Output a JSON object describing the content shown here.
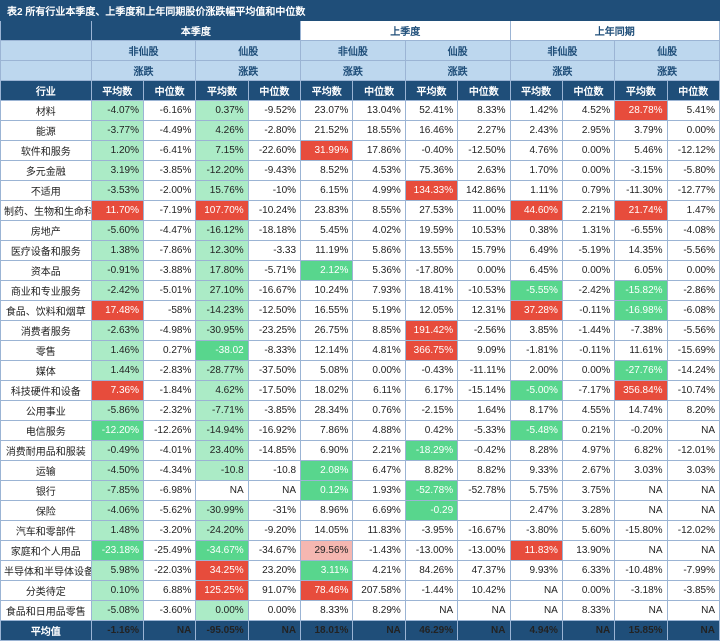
{
  "title": "表2 所有行业本季度、上季度和上年同期股价涨跌幅平均值和中位数",
  "periods": [
    "本季度",
    "上季度",
    "上年同期"
  ],
  "stockTypes": [
    "非仙股",
    "仙股"
  ],
  "metric": "涨跌",
  "colHeaders": [
    "平均数",
    "中位数"
  ],
  "industryHeader": "行业",
  "avgLabel": "平均值",
  "colors": {
    "hi_red": "#e74c3c",
    "hi_red_lt": "#f5b7b1",
    "hi_green": "#58d68d",
    "hi_green_lt": "#abebc6",
    "hi_none": ""
  },
  "rows": [
    {
      "label": "材料",
      "c": [
        [
          "-4.07%",
          "hi_green_lt"
        ],
        [
          "-6.16%",
          ""
        ],
        [
          "0.37%",
          "hi_green_lt"
        ],
        [
          "-9.52%",
          ""
        ],
        [
          "23.07%",
          ""
        ],
        [
          "13.04%",
          ""
        ],
        [
          "52.41%",
          ""
        ],
        [
          "8.33%",
          ""
        ],
        [
          "1.42%",
          ""
        ],
        [
          "4.52%",
          ""
        ],
        [
          "28.78%",
          "hi_red"
        ],
        [
          "5.41%",
          ""
        ]
      ]
    },
    {
      "label": "能源",
      "c": [
        [
          "-3.77%",
          "hi_green_lt"
        ],
        [
          "-4.49%",
          ""
        ],
        [
          "4.26%",
          "hi_green_lt"
        ],
        [
          "-2.80%",
          ""
        ],
        [
          "21.52%",
          ""
        ],
        [
          "18.55%",
          ""
        ],
        [
          "16.46%",
          ""
        ],
        [
          "2.27%",
          ""
        ],
        [
          "2.43%",
          ""
        ],
        [
          "2.95%",
          ""
        ],
        [
          "3.79%",
          ""
        ],
        [
          "0.00%",
          ""
        ]
      ]
    },
    {
      "label": "软件和服务",
      "c": [
        [
          "1.20%",
          "hi_green_lt"
        ],
        [
          "-6.41%",
          ""
        ],
        [
          "7.15%",
          "hi_green_lt"
        ],
        [
          "-22.60%",
          ""
        ],
        [
          "31.99%",
          "hi_red"
        ],
        [
          "17.86%",
          ""
        ],
        [
          "-0.40%",
          ""
        ],
        [
          "-12.50%",
          ""
        ],
        [
          "4.76%",
          ""
        ],
        [
          "0.00%",
          ""
        ],
        [
          "5.46%",
          ""
        ],
        [
          "-12.12%",
          ""
        ]
      ]
    },
    {
      "label": "多元金融",
      "c": [
        [
          "3.19%",
          "hi_green_lt"
        ],
        [
          "-3.85%",
          ""
        ],
        [
          "-12.20%",
          "hi_green_lt"
        ],
        [
          "-9.43%",
          ""
        ],
        [
          "8.52%",
          ""
        ],
        [
          "4.53%",
          ""
        ],
        [
          "75.36%",
          ""
        ],
        [
          "2.63%",
          ""
        ],
        [
          "1.70%",
          ""
        ],
        [
          "0.00%",
          ""
        ],
        [
          "-3.15%",
          ""
        ],
        [
          "-5.80%",
          ""
        ]
      ]
    },
    {
      "label": "不适用",
      "c": [
        [
          "-3.53%",
          "hi_green_lt"
        ],
        [
          "-2.00%",
          ""
        ],
        [
          "15.76%",
          "hi_green_lt"
        ],
        [
          "-10%",
          ""
        ],
        [
          "6.15%",
          ""
        ],
        [
          "4.99%",
          ""
        ],
        [
          "134.33%",
          "hi_red"
        ],
        [
          "142.86%",
          ""
        ],
        [
          "1.11%",
          ""
        ],
        [
          "0.79%",
          ""
        ],
        [
          "-11.30%",
          ""
        ],
        [
          "-12.77%",
          ""
        ]
      ]
    },
    {
      "label": "制药、生物和生命科学",
      "c": [
        [
          "11.70%",
          "hi_red"
        ],
        [
          "-7.19%",
          ""
        ],
        [
          "107.70%",
          "hi_red"
        ],
        [
          "-10.24%",
          ""
        ],
        [
          "23.83%",
          ""
        ],
        [
          "8.55%",
          ""
        ],
        [
          "27.53%",
          ""
        ],
        [
          "11.00%",
          ""
        ],
        [
          "44.60%",
          "hi_red"
        ],
        [
          "2.21%",
          ""
        ],
        [
          "21.74%",
          "hi_red"
        ],
        [
          "1.47%",
          ""
        ]
      ]
    },
    {
      "label": "房地产",
      "c": [
        [
          "-5.60%",
          "hi_green_lt"
        ],
        [
          "-4.47%",
          ""
        ],
        [
          "-16.12%",
          "hi_green_lt"
        ],
        [
          "-18.18%",
          ""
        ],
        [
          "5.45%",
          ""
        ],
        [
          "4.02%",
          ""
        ],
        [
          "19.59%",
          ""
        ],
        [
          "10.53%",
          ""
        ],
        [
          "0.38%",
          ""
        ],
        [
          "1.31%",
          ""
        ],
        [
          "-6.55%",
          ""
        ],
        [
          "-4.08%",
          ""
        ]
      ]
    },
    {
      "label": "医疗设备和服务",
      "c": [
        [
          "1.38%",
          "hi_green_lt"
        ],
        [
          "-7.86%",
          ""
        ],
        [
          "12.30%",
          "hi_green_lt"
        ],
        [
          "-3.33",
          ""
        ],
        [
          "11.19%",
          ""
        ],
        [
          "5.86%",
          ""
        ],
        [
          "13.55%",
          ""
        ],
        [
          "15.79%",
          ""
        ],
        [
          "6.49%",
          ""
        ],
        [
          "-5.19%",
          ""
        ],
        [
          "14.35%",
          ""
        ],
        [
          "-5.56%",
          ""
        ]
      ]
    },
    {
      "label": "资本品",
      "c": [
        [
          "-0.91%",
          "hi_green_lt"
        ],
        [
          "-3.88%",
          ""
        ],
        [
          "17.80%",
          "hi_green_lt"
        ],
        [
          "-5.71%",
          ""
        ],
        [
          "2.12%",
          "hi_green"
        ],
        [
          "5.36%",
          ""
        ],
        [
          "-17.80%",
          ""
        ],
        [
          "0.00%",
          ""
        ],
        [
          "6.45%",
          ""
        ],
        [
          "0.00%",
          ""
        ],
        [
          "6.05%",
          ""
        ],
        [
          "0.00%",
          ""
        ]
      ]
    },
    {
      "label": "商业和专业服务",
      "c": [
        [
          "-2.42%",
          "hi_green_lt"
        ],
        [
          "-5.01%",
          ""
        ],
        [
          "27.10%",
          "hi_green_lt"
        ],
        [
          "-16.67%",
          ""
        ],
        [
          "10.24%",
          ""
        ],
        [
          "7.93%",
          ""
        ],
        [
          "18.41%",
          ""
        ],
        [
          "-10.53%",
          ""
        ],
        [
          "-5.55%",
          "hi_green"
        ],
        [
          "-2.42%",
          ""
        ],
        [
          "-15.82%",
          "hi_green"
        ],
        [
          "-2.86%",
          ""
        ]
      ]
    },
    {
      "label": "食品、饮料和烟草",
      "c": [
        [
          "17.48%",
          "hi_red"
        ],
        [
          "-58%",
          ""
        ],
        [
          "-14.23%",
          "hi_green_lt"
        ],
        [
          "-12.50%",
          ""
        ],
        [
          "16.55%",
          ""
        ],
        [
          "5.19%",
          ""
        ],
        [
          "12.05%",
          ""
        ],
        [
          "12.31%",
          ""
        ],
        [
          "37.28%",
          "hi_red"
        ],
        [
          "-0.11%",
          ""
        ],
        [
          "-16.98%",
          "hi_green"
        ],
        [
          "-6.08%",
          ""
        ]
      ]
    },
    {
      "label": "消费者服务",
      "c": [
        [
          "-2.63%",
          "hi_green_lt"
        ],
        [
          "-4.98%",
          ""
        ],
        [
          "-30.95%",
          "hi_green_lt"
        ],
        [
          "-23.25%",
          ""
        ],
        [
          "26.75%",
          ""
        ],
        [
          "8.85%",
          ""
        ],
        [
          "191.42%",
          "hi_red"
        ],
        [
          "-2.56%",
          ""
        ],
        [
          "3.85%",
          ""
        ],
        [
          "-1.44%",
          ""
        ],
        [
          "-7.38%",
          ""
        ],
        [
          "-5.56%",
          ""
        ]
      ]
    },
    {
      "label": "零售",
      "c": [
        [
          "1.46%",
          "hi_green_lt"
        ],
        [
          "0.27%",
          ""
        ],
        [
          "-38.02",
          "hi_green"
        ],
        [
          "-8.33%",
          ""
        ],
        [
          "12.14%",
          ""
        ],
        [
          "4.81%",
          ""
        ],
        [
          "366.75%",
          "hi_red"
        ],
        [
          "9.09%",
          ""
        ],
        [
          "-1.81%",
          ""
        ],
        [
          "-0.11%",
          ""
        ],
        [
          "11.61%",
          ""
        ],
        [
          "-15.69%",
          ""
        ]
      ]
    },
    {
      "label": "媒体",
      "c": [
        [
          "1.44%",
          "hi_green_lt"
        ],
        [
          "-2.83%",
          ""
        ],
        [
          "-28.77%",
          "hi_green_lt"
        ],
        [
          "-37.50%",
          ""
        ],
        [
          "5.08%",
          ""
        ],
        [
          "0.00%",
          ""
        ],
        [
          "-0.43%",
          ""
        ],
        [
          "-11.11%",
          ""
        ],
        [
          "2.00%",
          ""
        ],
        [
          "0.00%",
          ""
        ],
        [
          "-27.76%",
          "hi_green"
        ],
        [
          "-14.24%",
          ""
        ]
      ]
    },
    {
      "label": "科技硬件和设备",
      "c": [
        [
          "7.36%",
          "hi_red"
        ],
        [
          "-1.84%",
          ""
        ],
        [
          "4.62%",
          "hi_green_lt"
        ],
        [
          "-17.50%",
          ""
        ],
        [
          "18.02%",
          ""
        ],
        [
          "6.11%",
          ""
        ],
        [
          "6.17%",
          ""
        ],
        [
          "-15.14%",
          ""
        ],
        [
          "-5.00%",
          "hi_green"
        ],
        [
          "-7.17%",
          ""
        ],
        [
          "356.84%",
          "hi_red"
        ],
        [
          "-10.74%",
          ""
        ]
      ]
    },
    {
      "label": "公用事业",
      "c": [
        [
          "-5.86%",
          "hi_green_lt"
        ],
        [
          "-2.32%",
          ""
        ],
        [
          "-7.71%",
          "hi_green_lt"
        ],
        [
          "-3.85%",
          ""
        ],
        [
          "28.34%",
          ""
        ],
        [
          "0.76%",
          ""
        ],
        [
          "-2.15%",
          ""
        ],
        [
          "1.64%",
          ""
        ],
        [
          "8.17%",
          ""
        ],
        [
          "4.55%",
          ""
        ],
        [
          "14.74%",
          ""
        ],
        [
          "8.20%",
          ""
        ]
      ]
    },
    {
      "label": "电信服务",
      "c": [
        [
          "-12.20%",
          "hi_green"
        ],
        [
          "-12.26%",
          ""
        ],
        [
          "-14.94%",
          "hi_green_lt"
        ],
        [
          "-16.92%",
          ""
        ],
        [
          "7.86%",
          ""
        ],
        [
          "4.88%",
          ""
        ],
        [
          "0.42%",
          ""
        ],
        [
          "-5.33%",
          ""
        ],
        [
          "-5.48%",
          "hi_green"
        ],
        [
          "0.21%",
          ""
        ],
        [
          "-0.20%",
          ""
        ],
        [
          "NA",
          ""
        ]
      ]
    },
    {
      "label": "消费耐用品和服装",
      "c": [
        [
          "-0.49%",
          "hi_green_lt"
        ],
        [
          "-4.01%",
          ""
        ],
        [
          "23.40%",
          "hi_green_lt"
        ],
        [
          "-14.85%",
          ""
        ],
        [
          "6.90%",
          ""
        ],
        [
          "2.21%",
          ""
        ],
        [
          "-18.29%",
          "hi_green"
        ],
        [
          "-0.42%",
          ""
        ],
        [
          "8.28%",
          ""
        ],
        [
          "4.97%",
          ""
        ],
        [
          "6.82%",
          ""
        ],
        [
          "-12.01%",
          ""
        ]
      ]
    },
    {
      "label": "运输",
      "c": [
        [
          "-4.50%",
          "hi_green_lt"
        ],
        [
          "-4.34%",
          ""
        ],
        [
          "-10.8",
          "hi_green_lt"
        ],
        [
          "-10.8",
          ""
        ],
        [
          "2.08%",
          "hi_green"
        ],
        [
          "6.47%",
          ""
        ],
        [
          "8.82%",
          ""
        ],
        [
          "8.82%",
          ""
        ],
        [
          "9.33%",
          ""
        ],
        [
          "2.67%",
          ""
        ],
        [
          "3.03%",
          ""
        ],
        [
          "3.03%",
          ""
        ]
      ]
    },
    {
      "label": "银行",
      "c": [
        [
          "-7.85%",
          "hi_green_lt"
        ],
        [
          "-6.98%",
          ""
        ],
        [
          "NA",
          ""
        ],
        [
          "NA",
          ""
        ],
        [
          "0.12%",
          "hi_green"
        ],
        [
          "1.93%",
          ""
        ],
        [
          "-52.78%",
          "hi_green"
        ],
        [
          "-52.78%",
          ""
        ],
        [
          "5.75%",
          ""
        ],
        [
          "3.75%",
          ""
        ],
        [
          "NA",
          ""
        ],
        [
          "NA",
          ""
        ]
      ]
    },
    {
      "label": "保险",
      "c": [
        [
          "-4.06%",
          "hi_green_lt"
        ],
        [
          "-5.62%",
          ""
        ],
        [
          "-30.99%",
          "hi_green_lt"
        ],
        [
          "-31%",
          ""
        ],
        [
          "8.96%",
          ""
        ],
        [
          "6.69%",
          ""
        ],
        [
          "-0.29",
          "hi_green"
        ],
        [
          "",
          ""
        ],
        [
          "2.47%",
          ""
        ],
        [
          "3.28%",
          ""
        ],
        [
          "NA",
          ""
        ],
        [
          "NA",
          ""
        ]
      ]
    },
    {
      "label": "汽车和零部件",
      "c": [
        [
          "1.48%",
          "hi_green_lt"
        ],
        [
          "-3.20%",
          ""
        ],
        [
          "-24.20%",
          "hi_green_lt"
        ],
        [
          "-9.20%",
          ""
        ],
        [
          "14.05%",
          ""
        ],
        [
          "11.83%",
          ""
        ],
        [
          "-3.95%",
          ""
        ],
        [
          "-16.67%",
          ""
        ],
        [
          "-3.80%",
          ""
        ],
        [
          "5.60%",
          ""
        ],
        [
          "-15.80%",
          ""
        ],
        [
          "-12.02%",
          ""
        ]
      ]
    },
    {
      "label": "家庭和个人用品",
      "c": [
        [
          "-23.18%",
          "hi_green"
        ],
        [
          "-25.49%",
          ""
        ],
        [
          "-34.67%",
          "hi_green"
        ],
        [
          "-34.67%",
          ""
        ],
        [
          "29.56%",
          "hi_red_lt"
        ],
        [
          "-1.43%",
          ""
        ],
        [
          "-13.00%",
          ""
        ],
        [
          "-13.00%",
          ""
        ],
        [
          "11.83%",
          "hi_red"
        ],
        [
          "13.90%",
          ""
        ],
        [
          "NA",
          ""
        ],
        [
          "NA",
          ""
        ]
      ]
    },
    {
      "label": "半导体和半导体设备",
      "c": [
        [
          "5.98%",
          "hi_green_lt"
        ],
        [
          "-22.03%",
          ""
        ],
        [
          "34.25%",
          "hi_red"
        ],
        [
          "23.20%",
          ""
        ],
        [
          "3.11%",
          "hi_green"
        ],
        [
          "4.21%",
          ""
        ],
        [
          "84.26%",
          ""
        ],
        [
          "47.37%",
          ""
        ],
        [
          "9.93%",
          ""
        ],
        [
          "6.33%",
          ""
        ],
        [
          "-10.48%",
          ""
        ],
        [
          "-7.99%",
          ""
        ]
      ]
    },
    {
      "label": "分类待定",
      "c": [
        [
          "0.10%",
          "hi_green_lt"
        ],
        [
          "6.88%",
          ""
        ],
        [
          "125.25%",
          "hi_red"
        ],
        [
          "91.07%",
          ""
        ],
        [
          "78.46%",
          "hi_red"
        ],
        [
          "207.58%",
          ""
        ],
        [
          "-1.44%",
          ""
        ],
        [
          "10.42%",
          ""
        ],
        [
          "NA",
          ""
        ],
        [
          "0.00%",
          ""
        ],
        [
          "-3.18%",
          ""
        ],
        [
          "-3.85%",
          ""
        ]
      ]
    },
    {
      "label": "食品和日用品零售",
      "c": [
        [
          "-5.08%",
          "hi_green_lt"
        ],
        [
          "-3.60%",
          ""
        ],
        [
          "0.00%",
          "hi_green_lt"
        ],
        [
          "0.00%",
          ""
        ],
        [
          "8.33%",
          ""
        ],
        [
          "8.29%",
          ""
        ],
        [
          "NA",
          ""
        ],
        [
          "NA",
          ""
        ],
        [
          "NA",
          ""
        ],
        [
          "8.33%",
          ""
        ],
        [
          "NA",
          ""
        ],
        [
          "NA",
          ""
        ]
      ]
    }
  ],
  "avgRow": [
    "-1.16%",
    "NA",
    "",
    "-95.05%",
    "NA",
    "18.01%",
    "NA",
    "",
    "46.29%",
    "NA",
    "4.94%",
    "NA",
    "",
    "15.85%",
    "NA"
  ]
}
